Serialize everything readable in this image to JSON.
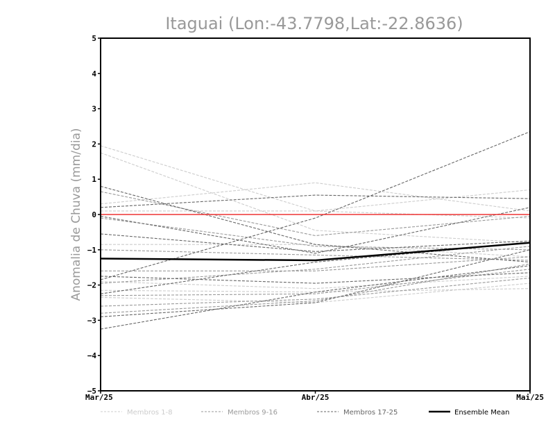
{
  "chart_data": {
    "type": "line",
    "title": "Itaguai (Lon:-43.7798,Lat:-22.8636)",
    "xlabel": "",
    "ylabel": "Anomalia de Chuva (mm/dia)",
    "categories": [
      "Mar/25",
      "Abr/25",
      "Mai/25"
    ],
    "y_ticks": [
      "-5",
      "-4",
      "-3",
      "-2",
      "-1",
      "0",
      "1",
      "2",
      "3",
      "4",
      "5"
    ],
    "ylim": [
      -5,
      5
    ],
    "zero_line_color": "#ee3333",
    "series": [
      {
        "name": "Membros 1-8",
        "group": "g1",
        "values": [
          1.95,
          0.1,
          -0.1
        ]
      },
      {
        "name": "Membros 1-8",
        "group": "g1",
        "values": [
          1.75,
          -0.45,
          -0.8
        ]
      },
      {
        "name": "Membros 1-8",
        "group": "g1",
        "values": [
          0.3,
          0.9,
          0.1
        ]
      },
      {
        "name": "Membros 1-8",
        "group": "g1",
        "values": [
          0.1,
          0.1,
          0.7
        ]
      },
      {
        "name": "Membros 1-8",
        "group": "g1",
        "values": [
          -0.85,
          -0.85,
          -1.2
        ]
      },
      {
        "name": "Membros 1-8",
        "group": "g1",
        "values": [
          -1.9,
          -2.1,
          -1.75
        ]
      },
      {
        "name": "Membros 1-8",
        "group": "g1",
        "values": [
          -2.35,
          -2.5,
          -1.95
        ]
      },
      {
        "name": "Membros 1-8",
        "group": "g1",
        "values": [
          -2.15,
          -2.2,
          -2.1
        ]
      },
      {
        "name": "Membros 9-16",
        "group": "g2",
        "values": [
          0.65,
          -0.6,
          -0.05
        ]
      },
      {
        "name": "Membros 9-16",
        "group": "g2",
        "values": [
          -0.1,
          -0.9,
          -1.0
        ]
      },
      {
        "name": "Membros 9-16",
        "group": "g2",
        "values": [
          -1.0,
          -1.15,
          -1.3
        ]
      },
      {
        "name": "Membros 9-16",
        "group": "g2",
        "values": [
          -1.6,
          -1.6,
          -1.2
        ]
      },
      {
        "name": "Membros 9-16",
        "group": "g2",
        "values": [
          -1.95,
          -1.55,
          -0.9
        ]
      },
      {
        "name": "Membros 9-16",
        "group": "g2",
        "values": [
          -2.3,
          -2.25,
          -1.55
        ]
      },
      {
        "name": "Membros 9-16",
        "group": "g2",
        "values": [
          -2.6,
          -2.4,
          -1.8
        ]
      },
      {
        "name": "Membros 9-16",
        "group": "g2",
        "values": [
          -2.8,
          -2.45,
          -1.4
        ]
      },
      {
        "name": "Membros 17-25",
        "group": "g3",
        "values": [
          -1.85,
          -0.1,
          2.35
        ]
      },
      {
        "name": "Membros 17-25",
        "group": "g3",
        "values": [
          0.2,
          0.55,
          0.45
        ]
      },
      {
        "name": "Membros 17-25",
        "group": "g3",
        "values": [
          0.8,
          -0.85,
          -1.35
        ]
      },
      {
        "name": "Membros 17-25",
        "group": "g3",
        "values": [
          -0.05,
          -1.1,
          0.2
        ]
      },
      {
        "name": "Membros 17-25",
        "group": "g3",
        "values": [
          -0.55,
          -1.05,
          -0.75
        ]
      },
      {
        "name": "Membros 17-25",
        "group": "g3",
        "values": [
          -1.75,
          -1.95,
          -1.65
        ]
      },
      {
        "name": "Membros 17-25",
        "group": "g3",
        "values": [
          -2.25,
          -1.35,
          -0.8
        ]
      },
      {
        "name": "Membros 17-25",
        "group": "g3",
        "values": [
          -2.9,
          -2.5,
          -1.0
        ]
      },
      {
        "name": "Membros 17-25",
        "group": "g3",
        "values": [
          -3.25,
          -2.2,
          -1.45
        ]
      },
      {
        "name": "Ensemble Mean",
        "group": "mean",
        "values": [
          -1.25,
          -1.3,
          -0.8
        ]
      }
    ],
    "styles": {
      "g1": {
        "color": "#cccccc",
        "dash": "4,2"
      },
      "g2": {
        "color": "#999999",
        "dash": "4,2"
      },
      "g3": {
        "color": "#666666",
        "dash": "4,2"
      },
      "mean": {
        "color": "#000000",
        "dash": ""
      }
    },
    "legend": [
      {
        "label": "Membros 1-8",
        "group": "g1",
        "text_color": "#cccccc"
      },
      {
        "label": "Membros 9-16",
        "group": "g2",
        "text_color": "#999999"
      },
      {
        "label": "Membros 17-25",
        "group": "g3",
        "text_color": "#666666"
      },
      {
        "label": "Ensemble Mean",
        "group": "mean",
        "text_color": "#000000"
      }
    ]
  }
}
